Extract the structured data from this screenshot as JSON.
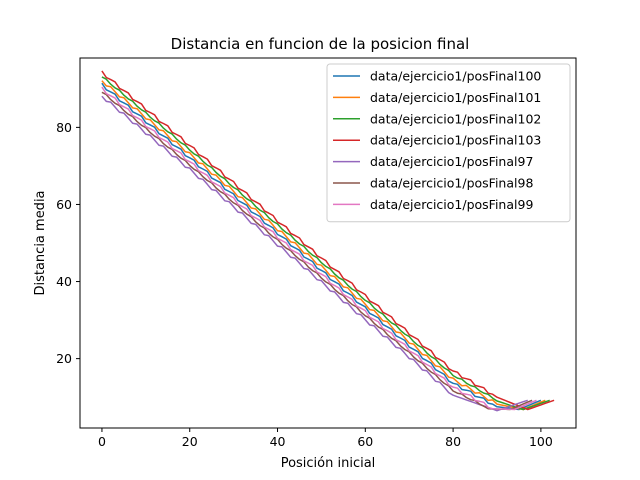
{
  "chart_data": {
    "type": "line",
    "title": "Distancia en funcion de la posicion final",
    "xlabel": "Posición inicial",
    "ylabel": "Distancia media",
    "xlim": [
      -5,
      108
    ],
    "ylim": [
      2,
      98
    ],
    "xticks": [
      0,
      20,
      40,
      60,
      80,
      100
    ],
    "yticks": [
      20,
      40,
      60,
      80
    ],
    "grid": false,
    "legend_position": "top-right",
    "series": [
      {
        "name": "data/ejercicio1/posFinal100",
        "color": "#1f77b4",
        "x": [
          0,
          10,
          20,
          30,
          40,
          50,
          60,
          70,
          80,
          90,
          95,
          100
        ],
        "y": [
          91,
          81.5,
          72,
          62.3,
          52.5,
          42.8,
          33,
          23.3,
          13.5,
          7.5,
          6.8,
          9.2
        ]
      },
      {
        "name": "data/ejercicio1/posFinal101",
        "color": "#ff7f0e",
        "x": [
          0,
          10,
          20,
          30,
          40,
          50,
          60,
          70,
          80,
          90,
          96,
          101
        ],
        "y": [
          92,
          82.5,
          73,
          63.3,
          53.5,
          43.8,
          34,
          24.3,
          14.5,
          8.2,
          6.8,
          9.2
        ]
      },
      {
        "name": "data/ejercicio1/posFinal102",
        "color": "#2ca02c",
        "x": [
          0,
          10,
          20,
          30,
          40,
          50,
          60,
          70,
          80,
          90,
          96,
          102
        ],
        "y": [
          93,
          83.5,
          74,
          64.3,
          54.5,
          44.8,
          35,
          25.3,
          15.5,
          9,
          6.8,
          9.2
        ]
      },
      {
        "name": "data/ejercicio1/posFinal103",
        "color": "#d62728",
        "x": [
          0,
          10,
          20,
          30,
          40,
          50,
          60,
          70,
          80,
          90,
          97,
          103
        ],
        "y": [
          94.2,
          84.7,
          75.2,
          65.5,
          55.7,
          46,
          36.2,
          26.5,
          16.7,
          10,
          6.8,
          9.2
        ]
      },
      {
        "name": "data/ejercicio1/posFinal97",
        "color": "#9467bd",
        "x": [
          0,
          10,
          20,
          30,
          40,
          50,
          60,
          70,
          80,
          90,
          97
        ],
        "y": [
          88,
          78.5,
          69,
          59.3,
          49.5,
          39.8,
          30,
          20.3,
          10.5,
          6.5,
          9.2
        ]
      },
      {
        "name": "data/ejercicio1/posFinal98",
        "color": "#8c564b",
        "x": [
          0,
          10,
          20,
          30,
          40,
          50,
          60,
          70,
          80,
          88,
          93,
          98
        ],
        "y": [
          89,
          79.5,
          70,
          60.3,
          50.5,
          40.8,
          31,
          21.3,
          11.5,
          7,
          6.8,
          9.2
        ]
      },
      {
        "name": "data/ejercicio1/posFinal99",
        "color": "#e377c2",
        "x": [
          0,
          10,
          20,
          30,
          40,
          50,
          60,
          70,
          80,
          89,
          94,
          99
        ],
        "y": [
          90,
          80.5,
          71,
          61.3,
          51.5,
          41.8,
          32,
          22.3,
          12.5,
          7,
          6.8,
          9.2
        ]
      }
    ]
  }
}
